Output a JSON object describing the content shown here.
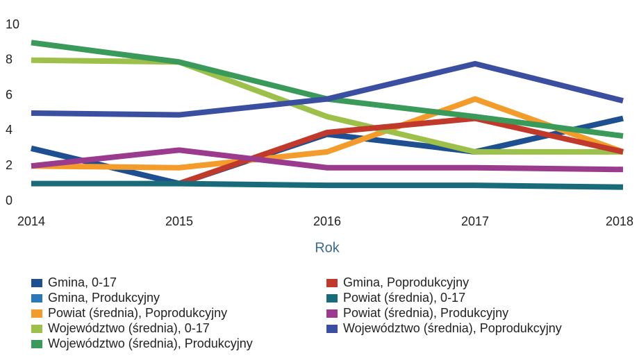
{
  "chart_data": {
    "type": "line",
    "x_label": "Rok",
    "categories": [
      "2014",
      "2015",
      "2016",
      "2017",
      "2018"
    ],
    "series": [
      {
        "name": "Gmina, 0-17",
        "color": "#1d4f91",
        "values": [
          3,
          1,
          3.8,
          2.8,
          4.7
        ]
      },
      {
        "name": "Gmina, Produkcyjny",
        "color": "#2a78b8",
        "values": [
          3,
          1,
          3.8,
          2.8,
          4.7
        ]
      },
      {
        "name": "Powiat (średnia), Poprodukcyjny",
        "color": "#f39c2c",
        "values": [
          2,
          1.9,
          2.8,
          5.8,
          2.8
        ]
      },
      {
        "name": "Województwo (średnia), 0-17",
        "color": "#9cc04a",
        "values": [
          8,
          7.9,
          4.8,
          2.8,
          2.8
        ]
      },
      {
        "name": "Województwo (średnia), Produkcyjny",
        "color": "#3a9a5a",
        "values": [
          9,
          7.9,
          5.8,
          4.8,
          3.7
        ]
      },
      {
        "name": "Gmina, Poprodukcyjny",
        "color": "#c0392b",
        "values": [
          null,
          1,
          3.9,
          4.7,
          2.8
        ]
      },
      {
        "name": "Powiat (średnia), 0-17",
        "color": "#1a6b7a",
        "values": [
          1,
          1,
          0.9,
          0.9,
          0.8
        ]
      },
      {
        "name": "Powiat (średnia), Produkcyjny",
        "color": "#9b3b8e",
        "values": [
          2,
          2.9,
          1.9,
          1.9,
          1.8
        ]
      },
      {
        "name": "Województwo (średnia), Poprodukcyjny",
        "color": "#3b4fa0",
        "values": [
          5,
          4.9,
          5.8,
          7.8,
          5.7
        ]
      }
    ],
    "ylim": [
      0,
      10
    ],
    "yticks": [
      0,
      2,
      4,
      6,
      8,
      10
    ],
    "grid": false
  }
}
